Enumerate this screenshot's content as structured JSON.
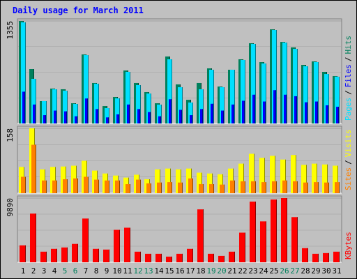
{
  "chart_data": [
    {
      "type": "bar",
      "title": "Daily usage for March 2011",
      "legend_separator": "/",
      "ylim": [
        0,
        1355
      ],
      "yticks": [
        1355
      ],
      "series": [
        {
          "name": "Hits",
          "color": "#00805c",
          "values": [
            1355,
            719,
            295,
            461,
            452,
            267,
            912,
            535,
            230,
            350,
            700,
            535,
            415,
            267,
            885,
            516,
            313,
            535,
            728,
            488,
            710,
            848,
            1060,
            811,
            1244,
            1078,
            1005,
            774,
            820,
            682,
            627
          ]
        },
        {
          "name": "Files",
          "color": "#0000ff",
          "values": [
            420,
            250,
            110,
            170,
            160,
            95,
            330,
            190,
            80,
            120,
            250,
            190,
            150,
            95,
            320,
            180,
            110,
            190,
            260,
            170,
            250,
            300,
            380,
            290,
            440,
            380,
            360,
            280,
            290,
            240,
            220
          ]
        },
        {
          "name": "Pages",
          "color": "#00e0ff",
          "values": [
            1336,
            590,
            295,
            452,
            433,
            258,
            903,
            525,
            203,
            332,
            682,
            507,
            396,
            249,
            848,
            479,
            277,
            452,
            710,
            479,
            710,
            839,
            1051,
            793,
            1235,
            1069,
            986,
            756,
            811,
            654,
            618
          ]
        }
      ]
    },
    {
      "type": "bar",
      "legend_separator": "/",
      "ylim": [
        0,
        158
      ],
      "yticks": [
        158
      ],
      "series": [
        {
          "name": "Visits",
          "color": "#ffff00",
          "values": [
            64,
            158,
            58,
            64,
            65,
            67,
            79,
            55,
            48,
            43,
            38,
            45,
            34,
            58,
            60,
            58,
            60,
            50,
            48,
            46,
            60,
            72,
            96,
            86,
            91,
            82,
            93,
            69,
            72,
            70,
            67
          ]
        },
        {
          "name": "Sites",
          "color": "#ff8000",
          "values": [
            40,
            118,
            31,
            31,
            34,
            36,
            40,
            33,
            31,
            31,
            22,
            33,
            24,
            26,
            27,
            26,
            36,
            22,
            22,
            21,
            31,
            29,
            29,
            27,
            29,
            31,
            29,
            26,
            27,
            26,
            27
          ]
        }
      ]
    },
    {
      "type": "bar",
      "ylim": [
        0,
        9890
      ],
      "yticks": [
        9890
      ],
      "categories": [
        "1",
        "2",
        "3",
        "4",
        "5",
        "6",
        "7",
        "8",
        "9",
        "10",
        "11",
        "12",
        "13",
        "14",
        "15",
        "16",
        "17",
        "18",
        "19",
        "20",
        "21",
        "22",
        "23",
        "24",
        "25",
        "26",
        "27",
        "28",
        "29",
        "30",
        "31"
      ],
      "label_colors": [
        "#000000",
        "#000000",
        "#000000",
        "#000000",
        "#00805c",
        "#00805c",
        "#000000",
        "#000000",
        "#000000",
        "#000000",
        "#000000",
        "#00805c",
        "#00805c",
        "#000000",
        "#000000",
        "#000000",
        "#000000",
        "#000000",
        "#00805c",
        "#00805c",
        "#000000",
        "#000000",
        "#000000",
        "#000000",
        "#000000",
        "#00805c",
        "#00805c",
        "#000000",
        "#000000",
        "#000000",
        "#000000"
      ],
      "series": [
        {
          "name": "KBytes",
          "color": "#ff0000",
          "values": [
            2608,
            7499,
            1630,
            2065,
            2282,
            2826,
            6738,
            2065,
            1956,
            4999,
            5325,
            1630,
            1304,
            1304,
            869,
            1304,
            2065,
            8151,
            1304,
            978,
            1630,
            4565,
            9346,
            6303,
            9672,
            9890,
            6956,
            2174,
            1304,
            1413,
            1630
          ]
        }
      ]
    }
  ]
}
